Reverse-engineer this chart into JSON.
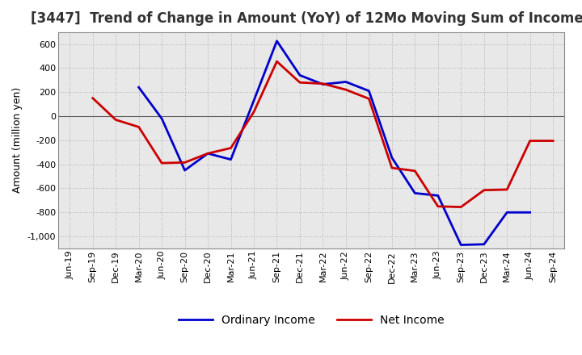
{
  "title": "[3447]  Trend of Change in Amount (YoY) of 12Mo Moving Sum of Incomes",
  "ylabel": "Amount (million yen)",
  "x_labels": [
    "Jun-19",
    "Sep-19",
    "Dec-19",
    "Mar-20",
    "Jun-20",
    "Sep-20",
    "Dec-20",
    "Mar-21",
    "Jun-21",
    "Sep-21",
    "Dec-21",
    "Mar-22",
    "Jun-22",
    "Sep-22",
    "Dec-22",
    "Mar-23",
    "Jun-23",
    "Sep-23",
    "Dec-23",
    "Mar-24",
    "Jun-24",
    "Sep-24"
  ],
  "ordinary_income": [
    null,
    null,
    null,
    240,
    -20,
    -450,
    -310,
    -360,
    130,
    625,
    340,
    265,
    285,
    210,
    -345,
    -640,
    -660,
    -1070,
    -1065,
    -800,
    -800,
    null
  ],
  "net_income": [
    null,
    150,
    -30,
    -90,
    -390,
    -385,
    -310,
    -265,
    35,
    455,
    280,
    270,
    220,
    145,
    -430,
    -455,
    -750,
    -755,
    -615,
    -610,
    -205,
    -205
  ],
  "ordinary_income_color": "#0000cc",
  "net_income_color": "#cc0000",
  "ylim": [
    -1100,
    700
  ],
  "yticks": [
    -1000,
    -800,
    -600,
    -400,
    -200,
    0,
    200,
    400,
    600
  ],
  "plot_bg_color": "#e8e8e8",
  "fig_bg_color": "#ffffff",
  "grid_color": "#aaaaaa",
  "title_fontsize": 12,
  "title_color": "#333333",
  "axis_fontsize": 9,
  "tick_fontsize": 8,
  "legend_fontsize": 10,
  "linewidth": 2.0
}
